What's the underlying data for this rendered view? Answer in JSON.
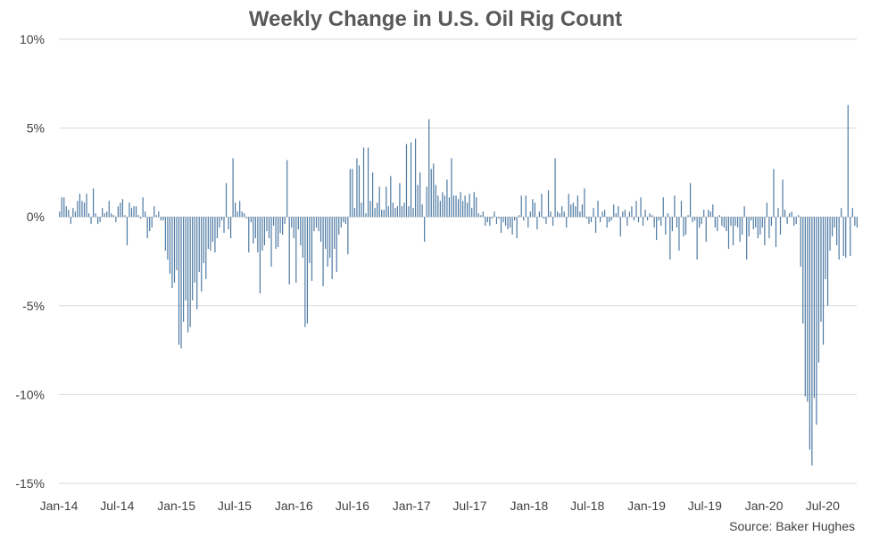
{
  "chart_data": {
    "type": "bar",
    "title": "Weekly Change in U.S. Oil Rig Count",
    "source": "Source: Baker Hughes",
    "xlabel": "",
    "ylabel": "",
    "ylim": [
      -15,
      10
    ],
    "y_ticks": [
      10,
      5,
      0,
      -5,
      -10,
      -15
    ],
    "y_tick_labels": [
      "10%",
      "5%",
      "0%",
      "-5%",
      "-10%",
      "-15%"
    ],
    "x_tick_labels": [
      "Jan-14",
      "Jul-14",
      "Jan-15",
      "Jul-15",
      "Jan-16",
      "Jul-16",
      "Jan-17",
      "Jul-17",
      "Jan-18",
      "Jul-18",
      "Jan-19",
      "Jul-19",
      "Jan-20",
      "Jul-20"
    ],
    "grid": true,
    "bar_color": "#4e7aa3",
    "grid_color": "#d9d9d9",
    "week_start": "2014-01-03",
    "values": [
      0.3,
      1.1,
      1.1,
      0.6,
      0.4,
      -0.4,
      0.5,
      0.3,
      0.9,
      1.3,
      0.9,
      0.8,
      1.3,
      0.2,
      -0.4,
      1.6,
      0.2,
      -0.4,
      -0.3,
      0.5,
      0.2,
      0.3,
      0.9,
      0.2,
      0.1,
      -0.3,
      0.6,
      0.8,
      1.0,
      0.1,
      -1.6,
      0.8,
      0.5,
      0.6,
      0.6,
      0.1,
      -0.1,
      1.1,
      0.3,
      -1.2,
      -0.8,
      -0.6,
      0.6,
      0.1,
      0.3,
      -0.2,
      -0.2,
      -1.9,
      -2.4,
      -3.2,
      -4.0,
      -3.7,
      -3.0,
      -7.2,
      -7.4,
      -5.9,
      -4.7,
      -6.5,
      -6.2,
      -4.7,
      -3.7,
      -5.2,
      -3.1,
      -4.2,
      -2.6,
      -3.5,
      -1.8,
      -1.9,
      -1.4,
      -2.0,
      -1.2,
      -0.6,
      -0.2,
      -0.9,
      1.9,
      -0.7,
      -1.2,
      3.3,
      0.8,
      0.3,
      0.9,
      0.3,
      0.2,
      -0.1,
      -2.0,
      -0.3,
      -1.5,
      -1.2,
      -2.0,
      -4.3,
      -1.9,
      -1.6,
      -0.8,
      -1.2,
      -2.8,
      -0.5,
      -1.8,
      -1.7,
      -0.9,
      -1.0,
      -0.4,
      3.2,
      -3.8,
      -0.6,
      -1.2,
      -3.7,
      -0.7,
      -1.6,
      -2.3,
      -6.2,
      -6.0,
      -2.6,
      -3.6,
      -0.8,
      -0.6,
      -0.8,
      -1.4,
      -3.9,
      -1.8,
      -2.8,
      -2.3,
      -3.5,
      -1.8,
      -3.1,
      -1.0,
      -0.6,
      -0.3,
      -0.4,
      -2.1,
      2.7,
      2.7,
      0.5,
      3.3,
      2.9,
      0.8,
      3.9,
      0.2,
      3.9,
      0.9,
      2.5,
      0.5,
      0.8,
      1.7,
      0.4,
      0.4,
      1.7,
      0.6,
      2.3,
      0.8,
      0.5,
      0.6,
      1.9,
      0.6,
      0.8,
      4.1,
      0.6,
      4.2,
      0.5,
      4.4,
      1.8,
      2.5,
      0.7,
      -1.4,
      1.7,
      5.5,
      2.7,
      3.0,
      1.8,
      1.2,
      0.9,
      1.4,
      1.2,
      2.1,
      1.1,
      3.3,
      1.2,
      1.2,
      1.0,
      1.4,
      0.9,
      1.2,
      0.8,
      1.3,
      0.5,
      1.4,
      1.1,
      0.2,
      0.1,
      0.3,
      -0.5,
      -0.3,
      -0.5,
      -0.1,
      0.3,
      -0.4,
      -0.1,
      -0.9,
      -0.3,
      -0.5,
      -0.7,
      -0.6,
      -1.0,
      -0.2,
      -1.2,
      0.1,
      1.2,
      -0.2,
      1.2,
      -0.6,
      0.3,
      1.0,
      0.8,
      -0.7,
      0.3,
      1.3,
      -0.1,
      -0.4,
      1.5,
      0.3,
      -0.5,
      3.3,
      0.3,
      0.2,
      0.6,
      0.3,
      -0.6,
      1.3,
      0.7,
      0.8,
      0.6,
      1.2,
      0.3,
      0.7,
      1.6,
      -0.1,
      -0.4,
      -0.3,
      0.5,
      -0.9,
      0.9,
      -0.3,
      0.3,
      0.4,
      -0.6,
      -0.3,
      -0.2,
      0.7,
      0.2,
      0.6,
      -1.1,
      0.3,
      0.4,
      -0.5,
      0.3,
      0.6,
      -0.2,
      0.9,
      -0.3,
      1.1,
      -0.5,
      0.4,
      -0.2,
      0.2,
      0.1,
      -0.6,
      -1.3,
      -0.2,
      -0.5,
      1.1,
      -1.0,
      0.2,
      -2.4,
      -0.8,
      1.2,
      -0.6,
      -1.9,
      0.9,
      -1.1,
      -1.0,
      0.1,
      1.9,
      -0.3,
      -0.2,
      -2.4,
      -0.6,
      -0.4,
      0.4,
      -1.4,
      0.4,
      0.3,
      0.7,
      -0.6,
      -0.8,
      0.1,
      -0.5,
      -0.6,
      -0.8,
      -1.8,
      -0.5,
      -1.6,
      -0.5,
      -0.6,
      -1.4,
      -1.0,
      0.6,
      -2.4,
      -1.1,
      -0.2,
      -0.7,
      -0.6,
      -1.2,
      -1.0,
      -0.6,
      -1.6,
      0.8,
      -1.2,
      -0.5,
      2.7,
      -1.7,
      0.5,
      -1.0,
      2.1,
      0.4,
      -0.4,
      0.2,
      0.3,
      -0.5,
      -0.4,
      0.1,
      -2.8,
      -6.0,
      -10.1,
      -10.4,
      -13.1,
      -14.0,
      -10.2,
      -11.7,
      -8.2,
      -5.9,
      -7.2,
      -3.5,
      -5.0,
      -1.9,
      -1.1,
      -0.6,
      -1.6,
      -2.4,
      0.5,
      -2.2,
      -2.3,
      6.3,
      -2.2,
      0.5,
      -0.5,
      -0.6
    ]
  }
}
